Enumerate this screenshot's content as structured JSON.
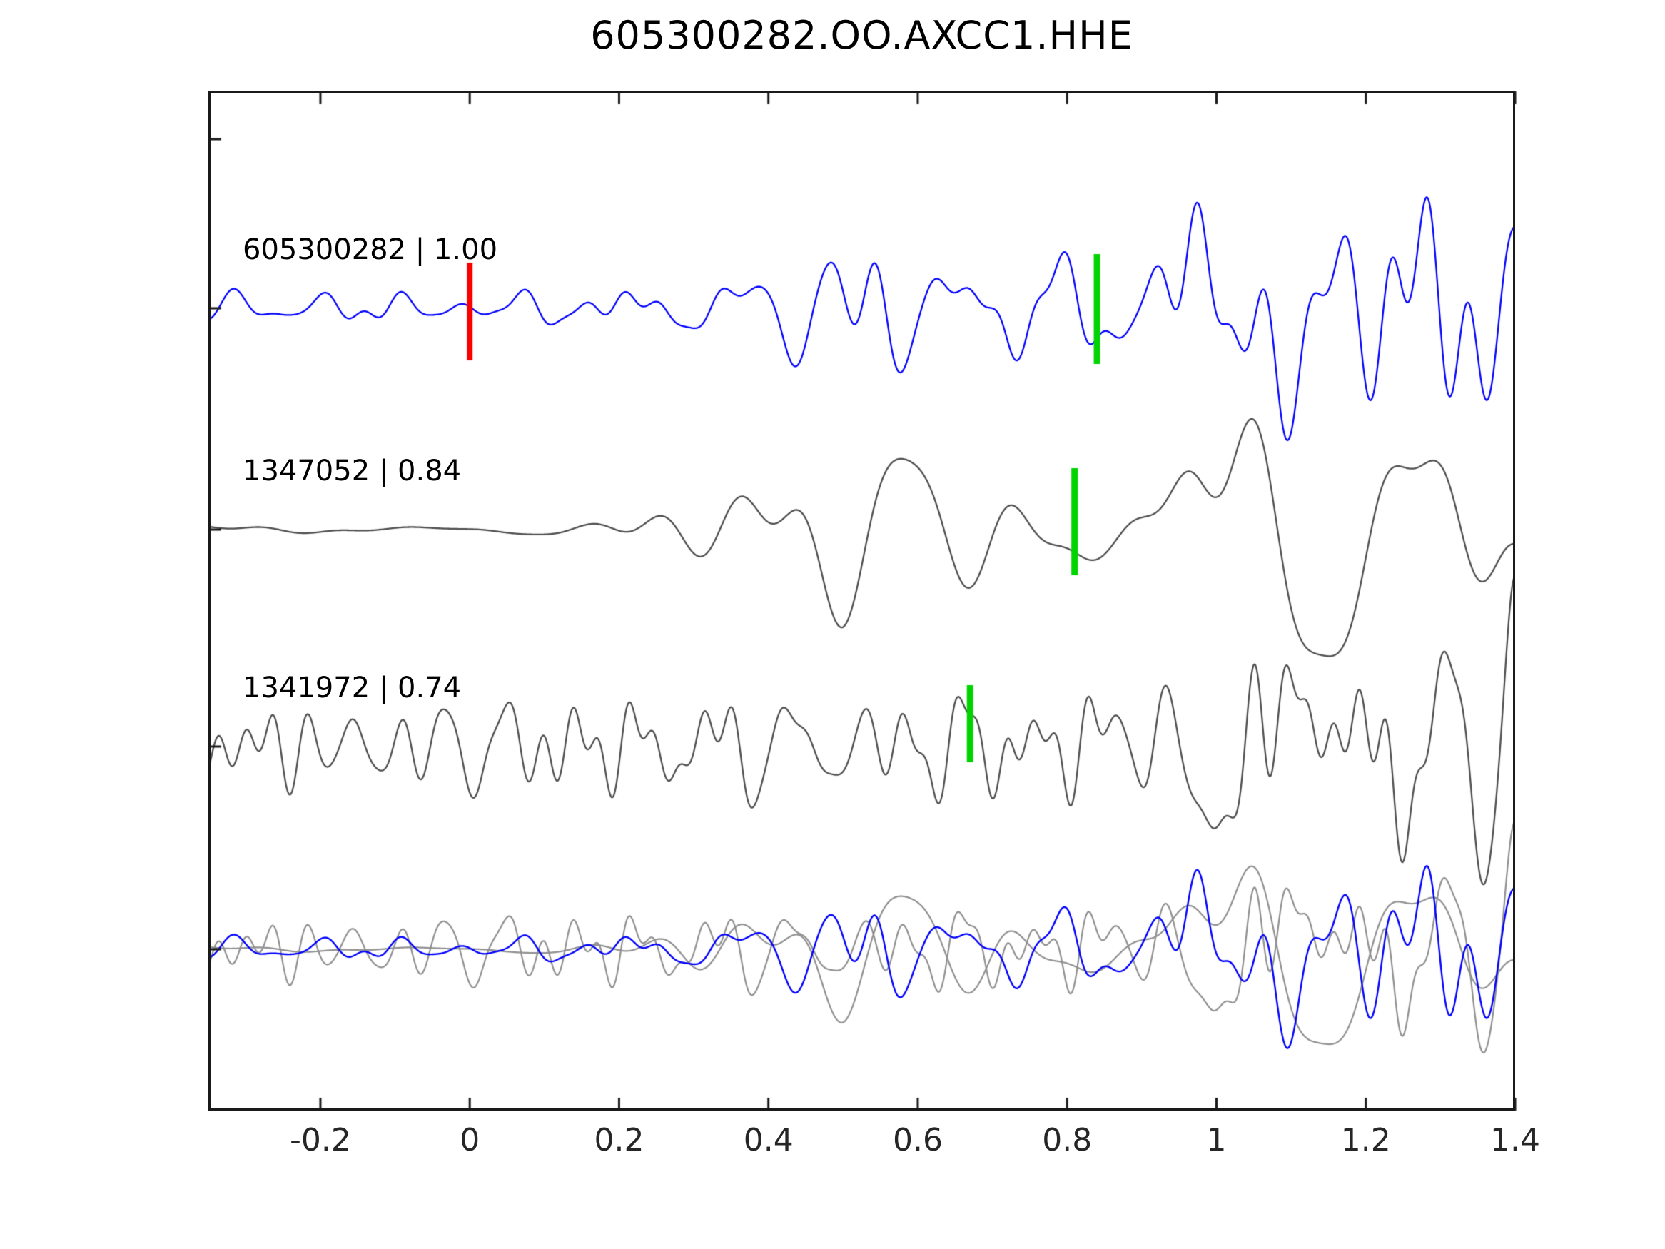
{
  "chart_data": {
    "type": "line",
    "title": "605300282.OO.AXCC1.HHE",
    "xlabel": "",
    "ylabel": "",
    "x_range": [
      -0.35,
      1.4
    ],
    "x_tick_values": [
      -0.2,
      0,
      0.2,
      0.4,
      0.6,
      0.8,
      1,
      1.2,
      1.4
    ],
    "x_ticks": [
      "-0.2",
      "0",
      "0.2",
      "0.4",
      "0.6",
      "0.8",
      "1",
      "1.2",
      "1.4"
    ],
    "grid": false,
    "legend": false,
    "frame_color": "#1a1a1a",
    "traces": [
      {
        "id": "605300282",
        "correlation": "1.00",
        "label": "605300282 | 1.00",
        "color": "#0000ff",
        "markers": [
          {
            "name": "pick-marker",
            "x": 0.0,
            "color": "#ff0000"
          },
          {
            "name": "aligned-pick-marker",
            "x": 0.84,
            "color": "#00d400"
          }
        ]
      },
      {
        "id": "1347052",
        "correlation": "0.84",
        "label": "1347052 | 0.84",
        "color": "#4d4d4d",
        "markers": [
          {
            "name": "aligned-pick-marker",
            "x": 0.81,
            "color": "#00d400"
          }
        ]
      },
      {
        "id": "1341972",
        "correlation": "0.74",
        "label": "1341972 | 0.74",
        "color": "#4d4d4d",
        "markers": [
          {
            "name": "aligned-pick-marker",
            "x": 0.67,
            "color": "#00d400"
          }
        ]
      },
      {
        "id": "overlay",
        "label": "",
        "overlay_of": [
          "1347052",
          "1341972",
          "605300282"
        ],
        "overlay_gray": "#8f8f8f",
        "overlay_blue": "#0000ff",
        "markers": []
      }
    ]
  }
}
